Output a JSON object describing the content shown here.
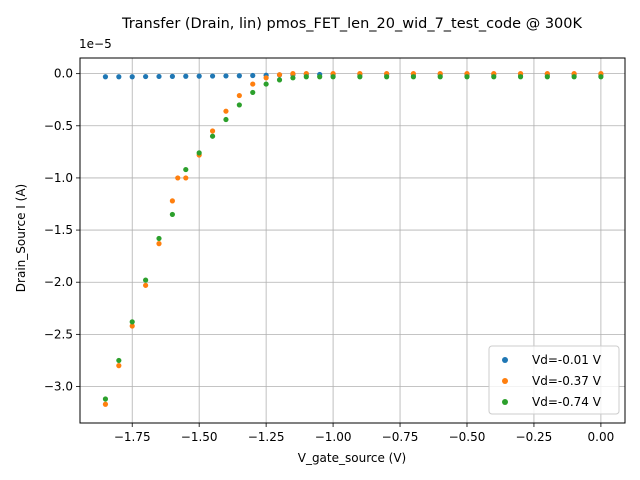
{
  "chart_data": {
    "type": "scatter",
    "title": "Transfer (Drain, lin) pmos_FET_len_20_wid_7_test_code @ 300K",
    "xlabel": "V_gate_source (V)",
    "ylabel": "Drain_Source I (A)",
    "y_offset_text": "1e−5",
    "y_scale": 1e-05,
    "xlim": [
      -1.945,
      0.09
    ],
    "ylim": [
      -3.35,
      0.15
    ],
    "x_ticks": [
      -1.75,
      -1.5,
      -1.25,
      -1.0,
      -0.75,
      -0.5,
      -0.25,
      0.0
    ],
    "x_tick_labels": [
      "−1.75",
      "−1.50",
      "−1.25",
      "−1.00",
      "−0.75",
      "−0.50",
      "−0.25",
      "0.00"
    ],
    "y_ticks": [
      0.0,
      -0.5,
      -1.0,
      -1.5,
      -2.0,
      -2.5,
      -3.0
    ],
    "y_tick_labels": [
      "0.0",
      "−0.5",
      "−1.0",
      "−1.5",
      "−2.0",
      "−2.5",
      "−3.0"
    ],
    "grid": true,
    "legend_position": "lower-right",
    "series": [
      {
        "name": "Vd=-0.01 V",
        "color": "#1f77b4",
        "x": [
          -1.85,
          -1.8,
          -1.75,
          -1.7,
          -1.65,
          -1.6,
          -1.55,
          -1.5,
          -1.45,
          -1.4,
          -1.35,
          -1.3,
          -1.25,
          -1.2,
          -1.15,
          -1.1,
          -1.05,
          -1.0,
          -0.9,
          -0.8,
          -0.7,
          -0.6,
          -0.5,
          -0.4,
          -0.3,
          -0.2,
          -0.1,
          0.0
        ],
        "y": [
          -0.03,
          -0.03,
          -0.03,
          -0.028,
          -0.027,
          -0.026,
          -0.025,
          -0.024,
          -0.023,
          -0.022,
          -0.02,
          -0.018,
          -0.015,
          -0.012,
          -0.01,
          -0.008,
          -0.008,
          -0.008,
          -0.008,
          -0.008,
          -0.008,
          -0.008,
          -0.008,
          -0.008,
          -0.008,
          -0.008,
          -0.008,
          -0.008
        ]
      },
      {
        "name": "Vd=-0.37 V",
        "color": "#ff7f0e",
        "x": [
          -1.85,
          -1.8,
          -1.75,
          -1.7,
          -1.65,
          -1.6,
          -1.58,
          -1.55,
          -1.5,
          -1.45,
          -1.4,
          -1.35,
          -1.3,
          -1.25,
          -1.2,
          -1.15,
          -1.1,
          -1.0,
          -0.9,
          -0.8,
          -0.7,
          -0.6,
          -0.5,
          -0.4,
          -0.3,
          -0.2,
          -0.1,
          0.0
        ],
        "y": [
          -3.17,
          -2.8,
          -2.42,
          -2.03,
          -1.63,
          -1.22,
          -1.0,
          -1.0,
          -0.78,
          -0.55,
          -0.36,
          -0.21,
          -0.1,
          -0.04,
          -0.01,
          0.0,
          0.0,
          0.0,
          0.0,
          0.0,
          0.0,
          0.0,
          0.0,
          0.0,
          0.0,
          0.0,
          0.0,
          0.0
        ]
      },
      {
        "name": "Vd=-0.74 V",
        "color": "#2ca02c",
        "x": [
          -1.85,
          -1.8,
          -1.75,
          -1.7,
          -1.65,
          -1.6,
          -1.55,
          -1.5,
          -1.45,
          -1.4,
          -1.35,
          -1.3,
          -1.25,
          -1.2,
          -1.15,
          -1.1,
          -1.05,
          -1.0,
          -0.9,
          -0.8,
          -0.7,
          -0.6,
          -0.5,
          -0.4,
          -0.3,
          -0.2,
          -0.1,
          0.0
        ],
        "y": [
          -3.12,
          -2.75,
          -2.38,
          -1.98,
          -1.58,
          -1.35,
          -0.92,
          -0.76,
          -0.6,
          -0.44,
          -0.3,
          -0.18,
          -0.1,
          -0.06,
          -0.04,
          -0.03,
          -0.03,
          -0.03,
          -0.03,
          -0.03,
          -0.03,
          -0.03,
          -0.03,
          -0.03,
          -0.03,
          -0.03,
          -0.03,
          -0.03
        ]
      }
    ]
  }
}
